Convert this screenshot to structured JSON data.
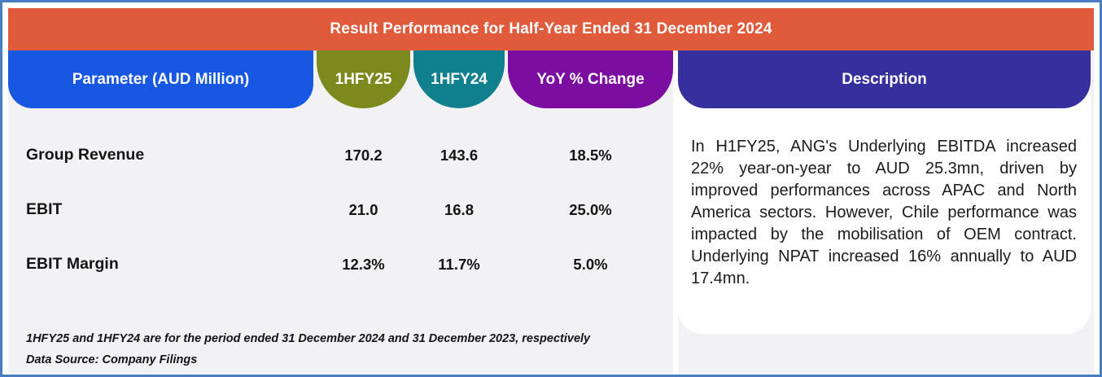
{
  "title": "Result Performance for Half-Year Ended 31 December 2024",
  "columns": {
    "parameter": "Parameter (AUD Million)",
    "hfy25": "1HFY25",
    "hfy24": "1HFY24",
    "yoy": "YoY % Change",
    "description": "Description"
  },
  "rows": [
    {
      "label": "Group Revenue",
      "hfy25": "170.2",
      "hfy24": "143.6",
      "yoy": "18.5%"
    },
    {
      "label": "EBIT",
      "hfy25": "21.0",
      "hfy24": "16.8",
      "yoy": "25.0%"
    },
    {
      "label": "EBIT Margin",
      "hfy25": "12.3%",
      "hfy24": "11.7%",
      "yoy": "5.0%"
    }
  ],
  "description": {
    "text": "In H1FY25, ANG's Underlying EBITDA increased 22% year-on-year to AUD 25.3mn, driven by improved performances across APAC and North America sectors. However, Chile performance was impacted by the mobilisation of OEM contract. Underlying NPAT increased 16% annually to AUD 17.4mn."
  },
  "footnotes": [
    "1HFY25 and 1HFY24 are for the period ended 31 December 2024 and 31 December 2023, respectively",
    "Data Source: Company Filings"
  ],
  "colors": {
    "frame_border": "#4a7cc2",
    "title_bar": "#e05a3c",
    "parameter_pill": "#1757e2",
    "hfy25_pill": "#7c8a1d",
    "hfy24_pill": "#10808e",
    "yoy_pill": "#7b0da0",
    "description_pill": "#36309e",
    "panel_background": "#f2f2f4",
    "card_background": "#ffffff",
    "text": "#141414"
  },
  "chart_data": {
    "type": "table",
    "title": "Result Performance for Half-Year Ended 31 December 2024",
    "columns": [
      "Parameter (AUD Million)",
      "1HFY25",
      "1HFY24",
      "YoY % Change"
    ],
    "rows": [
      [
        "Group Revenue",
        170.2,
        143.6,
        "18.5%"
      ],
      [
        "EBIT",
        21.0,
        16.8,
        "25.0%"
      ],
      [
        "EBIT Margin",
        "12.3%",
        "11.7%",
        "5.0%"
      ]
    ],
    "notes": [
      "1HFY25 and 1HFY24 are for the period ended 31 December 2024 and 31 December 2023, respectively",
      "Data Source: Company Filings"
    ]
  }
}
